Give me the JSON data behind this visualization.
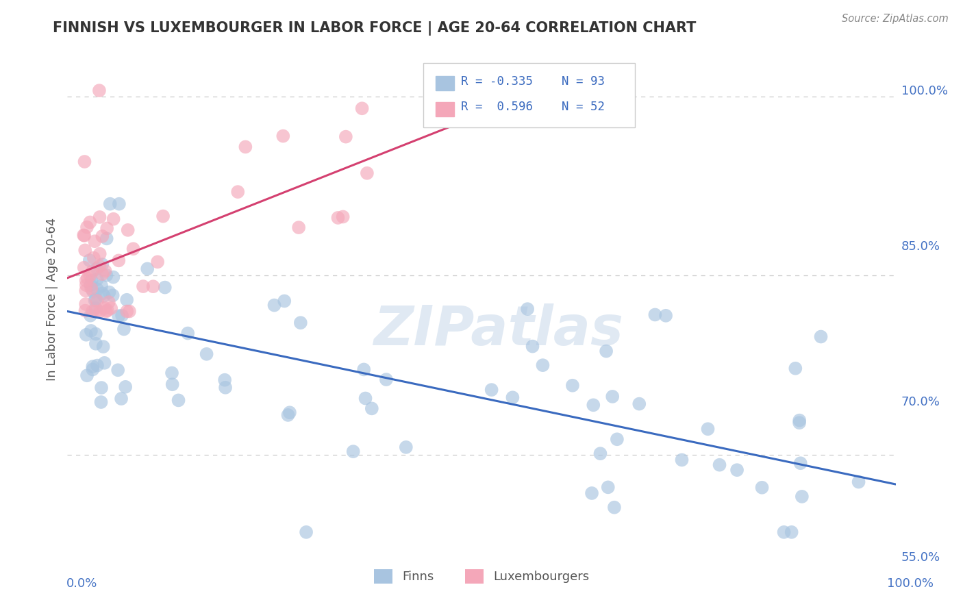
{
  "title": "FINNISH VS LUXEMBOURGER IN LABOR FORCE | AGE 20-64 CORRELATION CHART",
  "source": "Source: ZipAtlas.com",
  "ylabel": "In Labor Force | Age 20-64",
  "xlim": [
    -0.02,
    1.02
  ],
  "ylim": [
    0.615,
    1.045
  ],
  "yticks": [
    0.7,
    0.85,
    1.0
  ],
  "ytick_extra": 0.55,
  "ytick_labels": [
    "70.0%",
    "85.0%",
    "100.0%"
  ],
  "xtick_labels": [
    "0.0%",
    "100.0%"
  ],
  "legend_r_finns": "-0.335",
  "legend_n_finns": "93",
  "legend_r_lux": "0.596",
  "legend_n_lux": "52",
  "finns_color": "#a8c4e0",
  "lux_color": "#f4a7b9",
  "finns_line_color": "#3a6abf",
  "lux_line_color": "#d44070",
  "watermark": "ZIPatlas",
  "background_color": "#ffffff",
  "grid_color": "#cccccc",
  "title_color": "#333333",
  "axis_label_color": "#555555",
  "tick_color": "#4472c4"
}
